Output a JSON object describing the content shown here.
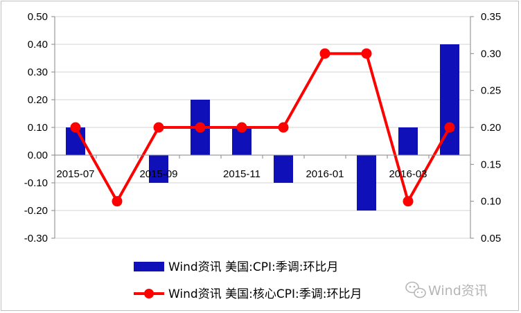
{
  "chart_data": {
    "type": "bar+line",
    "categories": [
      "2015-07",
      "2015-08",
      "2015-09",
      "2015-10",
      "2015-11",
      "2015-12",
      "2016-01",
      "2016-02",
      "2016-03",
      "2016-04"
    ],
    "x_tick_labels": [
      "2015-07",
      "2015-09",
      "2015-11",
      "2016-01",
      "2016-03"
    ],
    "series": [
      {
        "name": "Wind资讯 美国:CPI:季调:环比月",
        "type": "bar",
        "axis": "left",
        "color": "#1010b8",
        "values": [
          0.1,
          null,
          -0.1,
          0.2,
          0.1,
          -0.1,
          null,
          -0.2,
          0.1,
          0.4
        ]
      },
      {
        "name": "Wind资讯 美国:核心CPI:季调:环比月",
        "type": "line",
        "axis": "right",
        "color": "#ff0000",
        "values": [
          0.2,
          0.1,
          0.2,
          0.2,
          0.2,
          0.2,
          0.3,
          0.3,
          0.1,
          0.2
        ]
      }
    ],
    "y_left": {
      "min": -0.3,
      "max": 0.5,
      "step": 0.1,
      "ticks": [
        "-0.30",
        "-0.20",
        "-0.10",
        "0.00",
        "0.10",
        "0.20",
        "0.30",
        "0.40",
        "0.50"
      ]
    },
    "y_right": {
      "min": 0.05,
      "max": 0.35,
      "step": 0.05,
      "ticks": [
        "0.05",
        "0.10",
        "0.15",
        "0.20",
        "0.25",
        "0.30",
        "0.35"
      ]
    },
    "grid": true,
    "legend_position": "bottom"
  },
  "watermark": {
    "text": "Wind资讯",
    "icon": "wechat-icon"
  }
}
